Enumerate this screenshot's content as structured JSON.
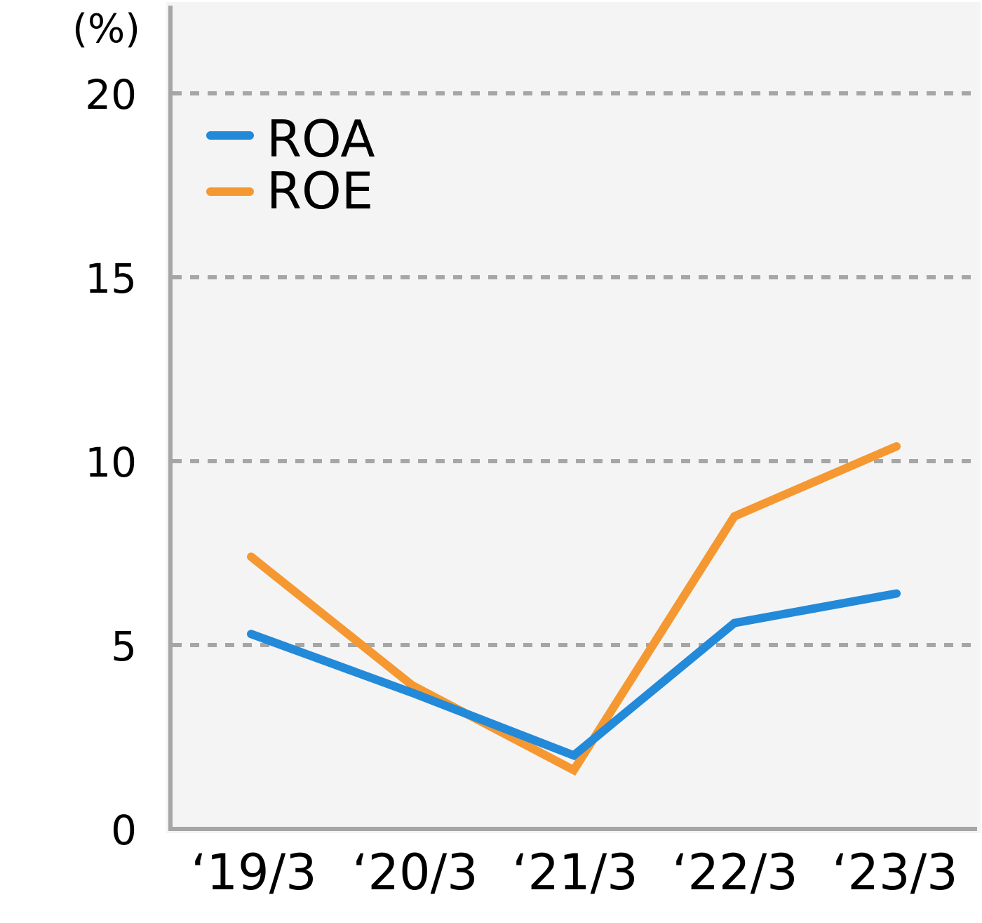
{
  "chart_data": {
    "type": "line",
    "title": "",
    "xlabel": "",
    "ylabel": "(%)",
    "ylim": [
      0,
      20
    ],
    "yticks": [
      0,
      5,
      10,
      15,
      20
    ],
    "grid": {
      "horizontal": true,
      "style": "dashed",
      "color": "#a6a6a6"
    },
    "legend_position": "upper-left-inside",
    "categories": [
      "‘19/3",
      "‘20/3",
      "‘21/3",
      "‘22/3",
      "‘23/3"
    ],
    "series": [
      {
        "name": "ROA",
        "color": "#2389d9",
        "values": [
          5.3,
          3.7,
          2.0,
          5.6,
          6.4
        ]
      },
      {
        "name": "ROE",
        "color": "#f59831",
        "values": [
          7.4,
          3.9,
          1.6,
          8.5,
          10.4
        ]
      }
    ]
  },
  "axis": {
    "unit": "(%)",
    "y_tick_labels": [
      "0",
      "5",
      "10",
      "15",
      "20"
    ]
  },
  "legend": {
    "items": [
      {
        "label": "ROA",
        "color": "#2389d9"
      },
      {
        "label": "ROE",
        "color": "#f59831"
      }
    ]
  },
  "colors": {
    "plot_background": "#f4f4f4",
    "axis": "#a6a6a6",
    "gridline": "#a6a6a6"
  }
}
